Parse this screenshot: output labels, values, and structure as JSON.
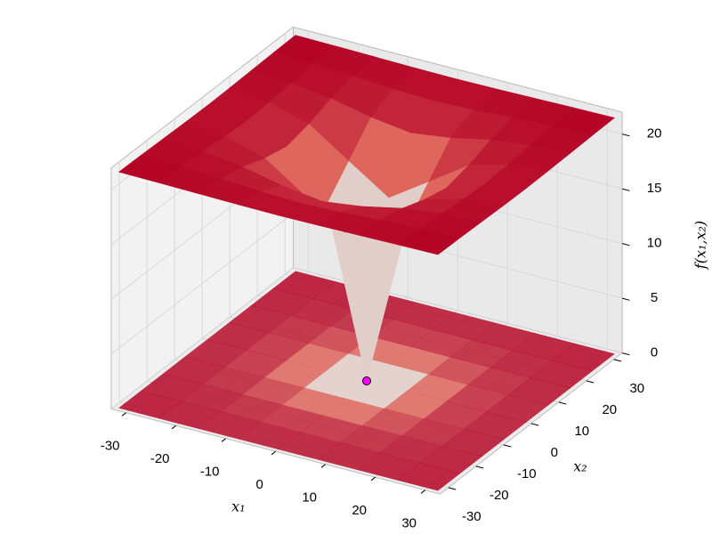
{
  "chart_data": {
    "type": "surface",
    "x": [
      -32,
      -24,
      -16,
      -8,
      0,
      8,
      16,
      24,
      32
    ],
    "y": [
      -32,
      -24,
      -16,
      -8,
      0,
      8,
      16,
      24,
      32
    ],
    "z": [
      [
        21.56,
        21.52,
        21.46,
        21.4,
        21.37,
        21.4,
        21.46,
        21.52,
        21.56
      ],
      [
        21.52,
        21.43,
        21.25,
        21.03,
        20.92,
        21.03,
        21.25,
        21.43,
        21.52
      ],
      [
        21.46,
        21.25,
        20.77,
        20.0,
        19.51,
        20.0,
        20.77,
        21.25,
        21.46
      ],
      [
        21.4,
        21.03,
        20.0,
        17.55,
        15.14,
        17.55,
        20.0,
        21.03,
        21.4
      ],
      [
        21.37,
        20.92,
        19.51,
        15.14,
        0,
        15.14,
        19.51,
        20.92,
        21.37
      ],
      [
        21.4,
        21.03,
        20.0,
        17.55,
        15.14,
        17.55,
        20.0,
        21.03,
        21.4
      ],
      [
        21.46,
        21.25,
        20.77,
        20.0,
        19.51,
        20.0,
        20.77,
        21.25,
        21.46
      ],
      [
        21.52,
        21.43,
        21.25,
        21.03,
        20.92,
        21.03,
        21.25,
        21.43,
        21.52
      ],
      [
        21.56,
        21.52,
        21.46,
        21.4,
        21.37,
        21.4,
        21.46,
        21.52,
        21.56
      ]
    ],
    "xlim": [
      -33,
      33
    ],
    "ylim": [
      -33,
      33
    ],
    "zlim": [
      0,
      22
    ],
    "xticks": [
      -30,
      -20,
      -10,
      0,
      10,
      20,
      30
    ],
    "yticks": [
      -30,
      -20,
      -10,
      0,
      10,
      20,
      30
    ],
    "zticks": [
      0,
      5,
      10,
      15,
      20
    ],
    "xlabel": "x₁",
    "ylabel": "x₂",
    "zlabel": "f(x₁,x₂)",
    "colormap": "coolwarm",
    "grid": true,
    "floor_contour": true,
    "minimum": {
      "x": 0,
      "y": 0,
      "z": 0,
      "color": "#ff00ff"
    }
  }
}
